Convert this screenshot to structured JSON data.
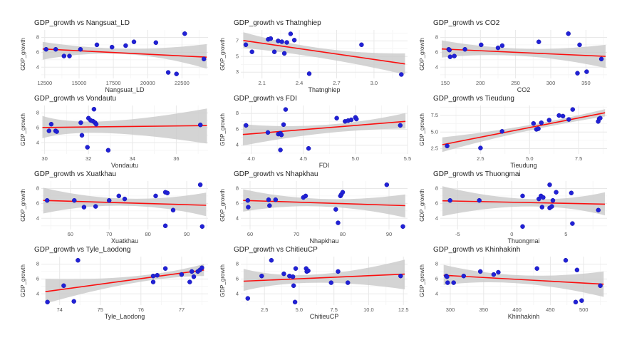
{
  "colors": {
    "point": "#2121d6",
    "point_edge": "#1414ad",
    "trend": "#fa0f0f",
    "band": "#c9c9c9",
    "grid_major": "#e8e8e8",
    "grid_minor": "#f4f4f4",
    "tick_text": "#5a5a5a",
    "axis_label": "#333333",
    "title_text": "#1f1f1f",
    "background": "#ffffff"
  },
  "chart_data": [
    {
      "type": "scatter",
      "title": "GDP_growth vs Nangsuat_LD",
      "xlabel": "Nangsuat_LD",
      "ylabel": "GDP_growth",
      "xlim": [
        12250,
        24400
      ],
      "ylim": [
        2.5,
        9.0
      ],
      "x_ticks": [
        "12500",
        "15000",
        "17500",
        "20000",
        "22500"
      ],
      "y_ticks": [
        "4",
        "6",
        "8"
      ],
      "points": [
        [
          12600,
          6.4
        ],
        [
          13300,
          6.4
        ],
        [
          13900,
          5.5
        ],
        [
          14300,
          5.5
        ],
        [
          15100,
          6.4
        ],
        [
          16300,
          7.0
        ],
        [
          17400,
          6.7
        ],
        [
          18400,
          6.9
        ],
        [
          19000,
          7.4
        ],
        [
          20600,
          7.3
        ],
        [
          21500,
          3.3
        ],
        [
          22100,
          3.1
        ],
        [
          22700,
          8.5
        ],
        [
          24100,
          5.1
        ]
      ],
      "trend": {
        "x": [
          12350,
          24300
        ],
        "y": [
          6.45,
          5.35
        ]
      },
      "band": {
        "x": [
          12350,
          18300,
          24300
        ],
        "upper": [
          7.4,
          6.5,
          7.1
        ],
        "lower": [
          5.0,
          5.75,
          3.8
        ]
      }
    },
    {
      "type": "scatter",
      "title": "GDP_growth vs Thatnghiep",
      "xlabel": "Thatnghiep",
      "ylabel": "GDP_growth",
      "xlim": [
        1.93,
        3.27
      ],
      "ylim": [
        2.2,
        8.4
      ],
      "x_ticks": [
        "2.1",
        "2.4",
        "2.7",
        "3.0"
      ],
      "y_ticks": [
        "3",
        "5",
        "7"
      ],
      "points": [
        [
          1.97,
          6.5
        ],
        [
          2.02,
          5.6
        ],
        [
          2.15,
          7.2
        ],
        [
          2.17,
          7.3
        ],
        [
          2.2,
          5.6
        ],
        [
          2.23,
          7.0
        ],
        [
          2.26,
          6.9
        ],
        [
          2.28,
          5.4
        ],
        [
          2.3,
          6.8
        ],
        [
          2.33,
          7.9
        ],
        [
          2.36,
          7.1
        ],
        [
          2.48,
          2.8
        ],
        [
          2.9,
          6.5
        ],
        [
          3.22,
          2.7
        ]
      ],
      "trend": {
        "x": [
          1.95,
          3.25
        ],
        "y": [
          7.05,
          4.05
        ]
      },
      "band": {
        "x": [
          1.95,
          2.6,
          3.25
        ],
        "upper": [
          8.1,
          6.0,
          5.4
        ],
        "lower": [
          6.1,
          4.75,
          2.7
        ]
      }
    },
    {
      "type": "scatter",
      "title": "GDP_growth vs CO2",
      "xlabel": "CO2",
      "ylabel": "GDP_growth",
      "xlim": [
        143,
        380
      ],
      "ylim": [
        2.5,
        9.0
      ],
      "x_ticks": [
        "150",
        "200",
        "250",
        "300",
        "350"
      ],
      "y_ticks": [
        "4",
        "6",
        "8"
      ],
      "points": [
        [
          155,
          6.4
        ],
        [
          156,
          6.3
        ],
        [
          157,
          5.4
        ],
        [
          163,
          5.5
        ],
        [
          178,
          6.4
        ],
        [
          201,
          7.0
        ],
        [
          225,
          6.6
        ],
        [
          231,
          6.9
        ],
        [
          283,
          7.4
        ],
        [
          325,
          8.5
        ],
        [
          338,
          3.2
        ],
        [
          341,
          7.0
        ],
        [
          351,
          3.4
        ],
        [
          372,
          5.1
        ]
      ],
      "trend": {
        "x": [
          145,
          378
        ],
        "y": [
          6.45,
          5.45
        ]
      },
      "band": {
        "x": [
          145,
          260,
          378
        ],
        "upper": [
          7.6,
          6.5,
          7.0
        ],
        "lower": [
          5.3,
          5.5,
          3.9
        ]
      }
    },
    {
      "type": "scatter",
      "title": "GDP_growth vs Vondautu",
      "xlabel": "Vondautu",
      "ylabel": "GDP_growth",
      "xlim": [
        29.85,
        37.45
      ],
      "ylim": [
        2.5,
        9.0
      ],
      "x_ticks": [
        "30",
        "32",
        "34",
        "36"
      ],
      "y_ticks": [
        "4",
        "6",
        "8"
      ],
      "points": [
        [
          30.2,
          5.6
        ],
        [
          30.3,
          6.5
        ],
        [
          30.5,
          5.6
        ],
        [
          30.55,
          5.5
        ],
        [
          31.65,
          6.7
        ],
        [
          31.7,
          5.0
        ],
        [
          31.95,
          3.4
        ],
        [
          32.0,
          7.3
        ],
        [
          32.1,
          7.0
        ],
        [
          32.2,
          6.9
        ],
        [
          32.25,
          8.5
        ],
        [
          32.3,
          6.7
        ],
        [
          32.35,
          6.5
        ],
        [
          32.9,
          3.0
        ],
        [
          37.1,
          6.4
        ]
      ],
      "trend": {
        "x": [
          29.9,
          37.4
        ],
        "y": [
          6.05,
          6.3
        ]
      },
      "band": {
        "x": [
          29.9,
          31.9,
          37.4
        ],
        "upper": [
          7.6,
          6.9,
          8.6
        ],
        "lower": [
          4.6,
          5.3,
          3.9
        ]
      }
    },
    {
      "type": "scatter",
      "title": "GDP_growth vs FDI",
      "xlabel": "FDI",
      "ylabel": "GDP_growth",
      "xlim": [
        3.9,
        5.5
      ],
      "ylim": [
        2.9,
        9.0
      ],
      "x_ticks": [
        "4.0",
        "4.5",
        "5.0",
        "5.5"
      ],
      "y_ticks": [
        "4",
        "6",
        "8"
      ],
      "points": [
        [
          3.95,
          6.5
        ],
        [
          4.16,
          5.6
        ],
        [
          4.26,
          5.4
        ],
        [
          4.28,
          5.5
        ],
        [
          4.29,
          5.3
        ],
        [
          4.28,
          3.4
        ],
        [
          4.31,
          6.6
        ],
        [
          4.33,
          8.5
        ],
        [
          4.55,
          3.6
        ],
        [
          4.82,
          7.4
        ],
        [
          4.9,
          7.0
        ],
        [
          4.93,
          7.1
        ],
        [
          4.96,
          7.2
        ],
        [
          5.0,
          7.5
        ],
        [
          5.01,
          7.3
        ],
        [
          5.43,
          6.5
        ]
      ],
      "trend": {
        "x": [
          3.92,
          5.48
        ],
        "y": [
          5.35,
          7.0
        ]
      },
      "band": {
        "x": [
          3.92,
          4.7,
          5.48
        ],
        "upper": [
          6.65,
          6.55,
          8.05
        ],
        "lower": [
          3.95,
          5.5,
          6.1
        ]
      }
    },
    {
      "type": "scatter",
      "title": "GDP_growth vs Tieudung",
      "xlabel": "Tieudung",
      "ylabel": "GDP_growth",
      "xlim": [
        0.45,
        8.95
      ],
      "ylim": [
        1.7,
        9.0
      ],
      "x_ticks": [
        "2.5",
        "5.0",
        "7.5"
      ],
      "y_ticks": [
        "2.5",
        "5.0",
        "7.5"
      ],
      "points": [
        [
          0.8,
          2.9
        ],
        [
          2.5,
          2.6
        ],
        [
          3.6,
          5.1
        ],
        [
          5.2,
          6.3
        ],
        [
          5.35,
          5.4
        ],
        [
          5.45,
          5.5
        ],
        [
          5.6,
          6.4
        ],
        [
          6.0,
          6.8
        ],
        [
          6.5,
          7.5
        ],
        [
          6.7,
          7.4
        ],
        [
          7.0,
          6.9
        ],
        [
          7.2,
          8.4
        ],
        [
          8.5,
          6.6
        ],
        [
          8.55,
          7.0
        ],
        [
          8.6,
          7.1
        ]
      ],
      "trend": {
        "x": [
          0.55,
          8.85
        ],
        "y": [
          3.1,
          7.9
        ]
      },
      "band": {
        "x": [
          0.55,
          4.7,
          8.85
        ],
        "upper": [
          4.2,
          5.9,
          8.45
        ],
        "lower": [
          2.0,
          5.05,
          7.35
        ]
      }
    },
    {
      "type": "scatter",
      "title": "GDP_growth vs Xuatkhau",
      "xlabel": "Xuatkhau",
      "ylabel": "GDP_growth",
      "xlim": [
        52.5,
        95.5
      ],
      "ylim": [
        2.5,
        9.0
      ],
      "x_ticks": [
        "60",
        "70",
        "80",
        "90"
      ],
      "y_ticks": [
        "4",
        "6",
        "8"
      ],
      "points": [
        [
          54,
          6.4
        ],
        [
          61,
          6.4
        ],
        [
          63.5,
          5.5
        ],
        [
          66.5,
          5.6
        ],
        [
          70,
          6.4
        ],
        [
          72.5,
          7.0
        ],
        [
          74,
          6.6
        ],
        [
          82,
          7.0
        ],
        [
          84.5,
          7.5
        ],
        [
          85,
          7.4
        ],
        [
          84.5,
          3.0
        ],
        [
          86.5,
          5.1
        ],
        [
          93.5,
          8.5
        ],
        [
          94,
          2.9
        ]
      ],
      "trend": {
        "x": [
          53,
          95
        ],
        "y": [
          6.4,
          5.75
        ]
      },
      "band": {
        "x": [
          53,
          74,
          95
        ],
        "upper": [
          8.1,
          6.65,
          7.45
        ],
        "lower": [
          4.65,
          5.7,
          4.3
        ]
      }
    },
    {
      "type": "scatter",
      "title": "GDP_growth vs Nhapkhau",
      "xlabel": "Nhapkhau",
      "ylabel": "GDP_growth",
      "xlim": [
        58,
        94
      ],
      "ylim": [
        2.5,
        9.0
      ],
      "x_ticks": [
        "60",
        "70",
        "80",
        "90"
      ],
      "y_ticks": [
        "4",
        "6",
        "8"
      ],
      "points": [
        [
          59.5,
          6.4
        ],
        [
          59.6,
          5.5
        ],
        [
          64,
          6.5
        ],
        [
          64.2,
          5.7
        ],
        [
          65.5,
          6.5
        ],
        [
          71.5,
          6.8
        ],
        [
          72,
          7.0
        ],
        [
          78.5,
          5.2
        ],
        [
          79,
          3.4
        ],
        [
          79.5,
          7.0
        ],
        [
          79.7,
          7.2
        ],
        [
          80,
          7.5
        ],
        [
          89.5,
          8.5
        ],
        [
          93,
          2.9
        ]
      ],
      "trend": {
        "x": [
          58.5,
          93.5
        ],
        "y": [
          6.4,
          5.7
        ]
      },
      "band": {
        "x": [
          58.5,
          75,
          93.5
        ],
        "upper": [
          7.9,
          6.6,
          7.2
        ],
        "lower": [
          4.9,
          5.6,
          4.1
        ]
      }
    },
    {
      "type": "scatter",
      "title": "GDP_growth vs Thuongmai",
      "xlabel": "Thuongmai",
      "ylabel": "GDP_growth",
      "xlim": [
        -6.6,
        8.8
      ],
      "ylim": [
        2.5,
        9.0
      ],
      "x_ticks": [
        "-5",
        "0",
        "5"
      ],
      "y_ticks": [
        "4",
        "6",
        "8"
      ],
      "points": [
        [
          -5.7,
          6.4
        ],
        [
          -3,
          6.4
        ],
        [
          1,
          7.0
        ],
        [
          1,
          2.9
        ],
        [
          2.5,
          6.6
        ],
        [
          2.7,
          7.0
        ],
        [
          2.8,
          5.5
        ],
        [
          2.9,
          6.8
        ],
        [
          3.5,
          8.5
        ],
        [
          3.5,
          5.4
        ],
        [
          3.7,
          5.6
        ],
        [
          3.8,
          6.4
        ],
        [
          4.1,
          7.5
        ],
        [
          5.5,
          7.4
        ],
        [
          5.6,
          3.3
        ],
        [
          8,
          5.1
        ]
      ],
      "trend": {
        "x": [
          -6.4,
          8.6
        ],
        "y": [
          6.35,
          5.9
        ]
      },
      "band": {
        "x": [
          -6.4,
          2,
          8.6
        ],
        "upper": [
          8.3,
          6.6,
          7.5
        ],
        "lower": [
          4.3,
          5.6,
          4.4
        ]
      }
    },
    {
      "type": "scatter",
      "title": "GDP_growth vs Tyle_Laodong",
      "xlabel": "Tyle_Laodong",
      "ylabel": "GDP_growth",
      "xlim": [
        73.55,
        77.65
      ],
      "ylim": [
        2.5,
        9.0
      ],
      "x_ticks": [
        "74",
        "75",
        "76",
        "77"
      ],
      "y_ticks": [
        "4",
        "6",
        "8"
      ],
      "points": [
        [
          73.7,
          2.9
        ],
        [
          74.1,
          5.1
        ],
        [
          74.35,
          3.0
        ],
        [
          74.45,
          8.5
        ],
        [
          76.3,
          6.4
        ],
        [
          76.3,
          5.6
        ],
        [
          76.4,
          6.5
        ],
        [
          76.6,
          7.4
        ],
        [
          77.0,
          6.6
        ],
        [
          77.2,
          5.6
        ],
        [
          77.25,
          7.0
        ],
        [
          77.3,
          6.3
        ],
        [
          77.4,
          7.0
        ],
        [
          77.45,
          7.2
        ],
        [
          77.5,
          7.5
        ]
      ],
      "trend": {
        "x": [
          73.65,
          77.55
        ],
        "y": [
          4.3,
          7.2
        ]
      },
      "band": {
        "x": [
          73.65,
          76.0,
          77.55
        ],
        "upper": [
          6.0,
          6.35,
          8.0
        ],
        "lower": [
          2.7,
          5.45,
          6.4
        ]
      }
    },
    {
      "type": "scatter",
      "title": "GDP_growth vs ChitieuCP",
      "xlabel": "ChitieuCP",
      "ylabel": "GDP_growth",
      "xlim": [
        0.8,
        12.8
      ],
      "ylim": [
        2.5,
        9.0
      ],
      "x_ticks": [
        "2.5",
        "5.0",
        "7.5",
        "10.0",
        "12.5"
      ],
      "y_ticks": [
        "4",
        "6",
        "8"
      ],
      "points": [
        [
          1.3,
          3.4
        ],
        [
          2.3,
          6.4
        ],
        [
          3.0,
          8.5
        ],
        [
          3.9,
          6.7
        ],
        [
          4.3,
          6.4
        ],
        [
          4.55,
          6.3
        ],
        [
          4.6,
          5.1
        ],
        [
          4.7,
          2.9
        ],
        [
          4.75,
          7.4
        ],
        [
          5.5,
          7.4
        ],
        [
          5.55,
          7.0
        ],
        [
          5.65,
          7.1
        ],
        [
          7.3,
          5.5
        ],
        [
          7.8,
          7.0
        ],
        [
          8.5,
          5.5
        ],
        [
          12.3,
          6.4
        ]
      ],
      "trend": {
        "x": [
          1.0,
          12.6
        ],
        "y": [
          5.7,
          6.65
        ]
      },
      "band": {
        "x": [
          1.0,
          5.5,
          12.6
        ],
        "upper": [
          7.35,
          6.6,
          8.6
        ],
        "lower": [
          4.4,
          5.5,
          4.6
        ]
      }
    },
    {
      "type": "scatter",
      "title": "GDP_growth vs Khinhakinh",
      "xlabel": "Khinhakinh",
      "ylabel": "GDP_growth",
      "xlim": [
        285,
        535
      ],
      "ylim": [
        2.5,
        9.0
      ],
      "x_ticks": [
        "300",
        "350",
        "400",
        "450",
        "500"
      ],
      "y_ticks": [
        "4",
        "6",
        "8"
      ],
      "points": [
        [
          294,
          6.4
        ],
        [
          295,
          6.3
        ],
        [
          296,
          5.5
        ],
        [
          305,
          5.5
        ],
        [
          320,
          6.4
        ],
        [
          345,
          7.0
        ],
        [
          365,
          6.6
        ],
        [
          372,
          6.9
        ],
        [
          430,
          7.4
        ],
        [
          473,
          8.5
        ],
        [
          488,
          2.9
        ],
        [
          490,
          7.2
        ],
        [
          497,
          3.1
        ],
        [
          525,
          5.1
        ]
      ],
      "trend": {
        "x": [
          290,
          530
        ],
        "y": [
          6.5,
          5.3
        ]
      },
      "band": {
        "x": [
          290,
          400,
          530
        ],
        "upper": [
          7.9,
          6.5,
          7.0
        ],
        "lower": [
          5.2,
          5.4,
          3.6
        ]
      }
    }
  ]
}
